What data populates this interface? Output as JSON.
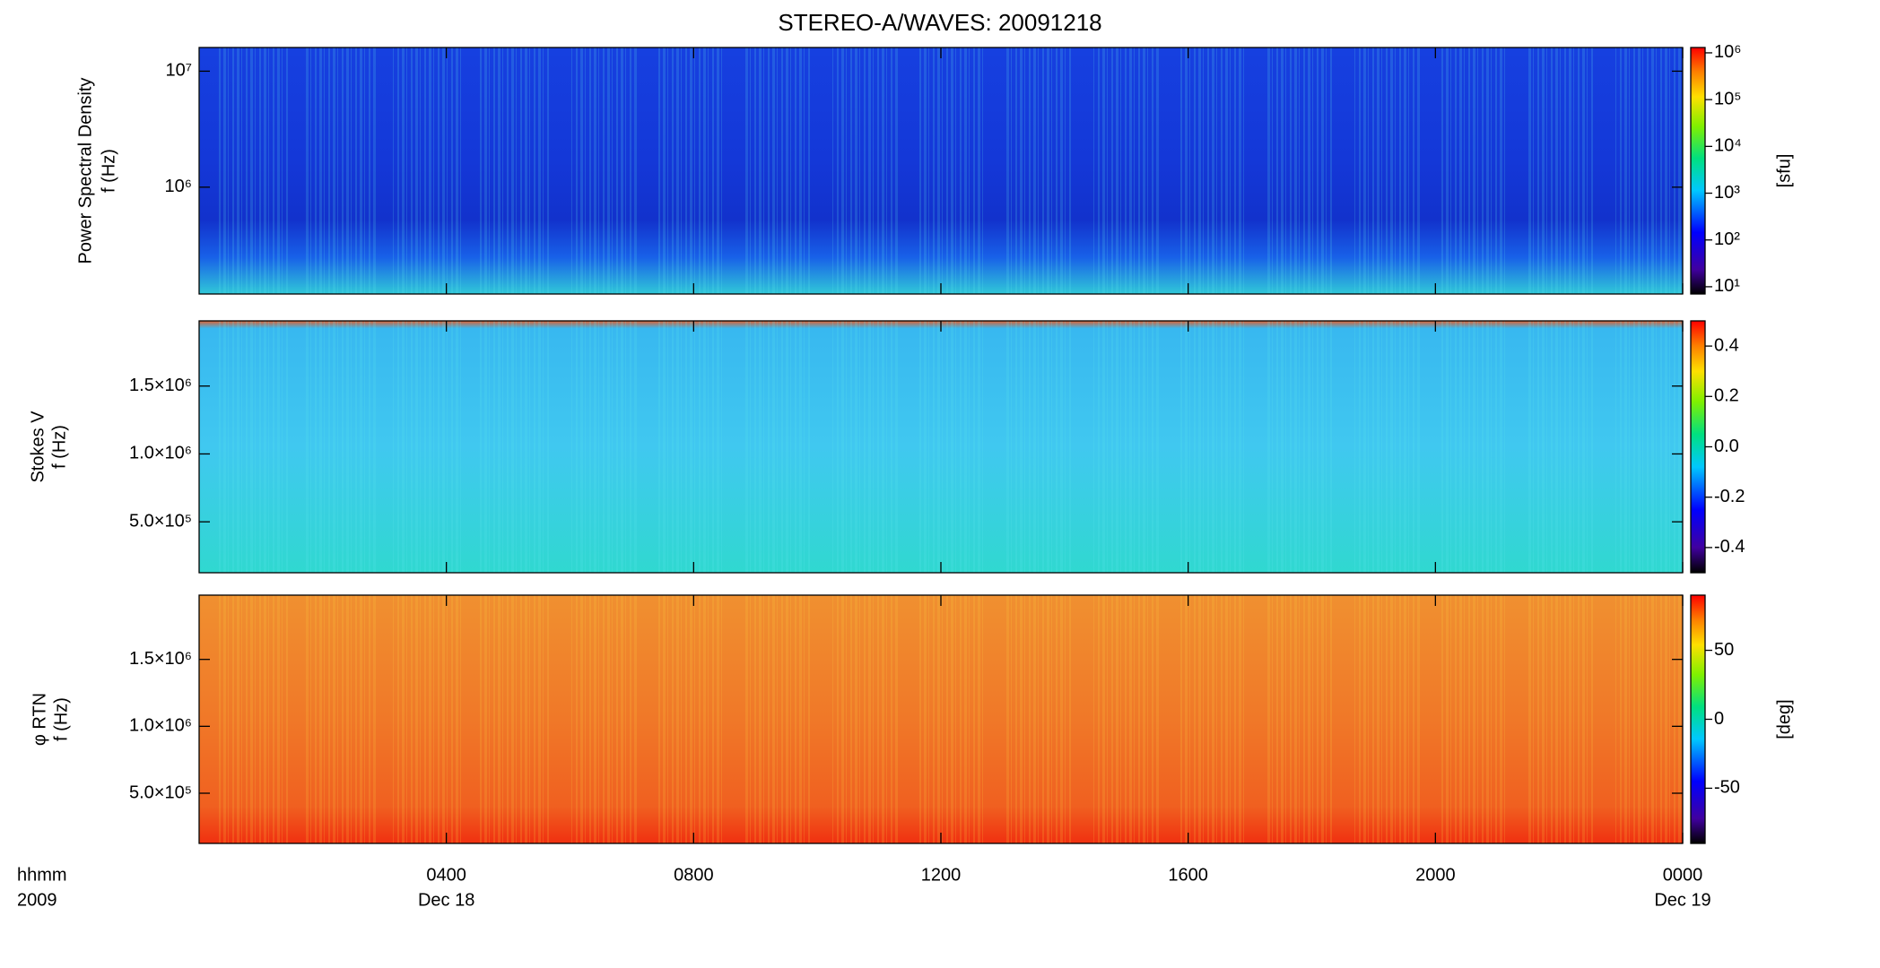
{
  "title": "STEREO-A/WAVES: 20091218",
  "x_unit_label": "hhmm",
  "year_label": "2009",
  "xlim": [
    0,
    24
  ],
  "xticks": [
    {
      "value": 4,
      "label": "0400"
    },
    {
      "value": 8,
      "label": "0800"
    },
    {
      "value": 12,
      "label": "1200"
    },
    {
      "value": 16,
      "label": "1600"
    },
    {
      "value": 20,
      "label": "2000"
    },
    {
      "value": 24,
      "label": "0000"
    }
  ],
  "xtick_dates": [
    {
      "value": 4,
      "label": "Dec 18"
    },
    {
      "value": 24,
      "label": "Dec 19"
    }
  ],
  "chart_data": [
    {
      "type": "heatmap",
      "ylabel": [
        "Power Spectral Density",
        "f (Hz)"
      ],
      "log_y": true,
      "ylim": [
        120000,
        16000000
      ],
      "yticks": [
        {
          "value": 1000000,
          "label": "10⁶"
        },
        {
          "value": 10000000,
          "label": "10⁷"
        }
      ],
      "colorbar_log": true,
      "clim": [
        7,
        1300000
      ],
      "cticks": [
        {
          "value": 10,
          "label": "10¹"
        },
        {
          "value": 100,
          "label": "10²"
        },
        {
          "value": 1000,
          "label": "10³"
        },
        {
          "value": 10000,
          "label": "10⁴"
        },
        {
          "value": 100000,
          "label": "10⁵"
        },
        {
          "value": 1000000,
          "label": "10⁶"
        }
      ],
      "colorbar_label": "[sfu]"
    },
    {
      "type": "heatmap",
      "ylabel": [
        "Stokes V",
        "f (Hz)"
      ],
      "log_y": false,
      "ylim": [
        125000,
        1980000
      ],
      "yticks": [
        {
          "value": 500000,
          "label": "5.0×10⁵"
        },
        {
          "value": 1000000,
          "label": "1.0×10⁶"
        },
        {
          "value": 1500000,
          "label": "1.5×10⁶"
        }
      ],
      "colorbar_log": false,
      "clim": [
        -0.5,
        0.5
      ],
      "cticks": [
        -0.4,
        -0.2,
        {
          "value": 0,
          "label": "0.0"
        },
        0.2,
        0.4
      ]
    },
    {
      "type": "heatmap",
      "ylabel": [
        "φ RTN",
        "f (Hz)"
      ],
      "log_y": false,
      "ylim": [
        125000,
        1980000
      ],
      "yticks": [
        {
          "value": 500000,
          "label": "5.0×10⁵"
        },
        {
          "value": 1000000,
          "label": "1.0×10⁶"
        },
        {
          "value": 1500000,
          "label": "1.5×10⁶"
        }
      ],
      "colorbar_log": false,
      "clim": [
        -90,
        90
      ],
      "cticks": [
        -50,
        0,
        50
      ],
      "colorbar_label": "[deg]"
    }
  ]
}
